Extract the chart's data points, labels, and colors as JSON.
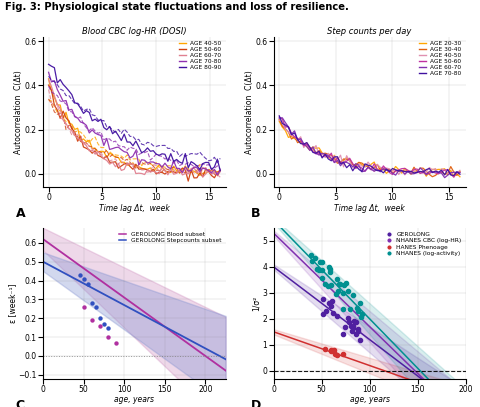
{
  "title": "Fig. 3: Physiological state fluctuations and loss of resilience.",
  "panel_A_title": "Blood CBC log-HR (DOSI)",
  "panel_B_title": "Step counts per day",
  "xlabel_AB": "Time lag Δt,  week",
  "ylabel_AB": "Autocorrelation  C(Δt)",
  "xlim_AB": [
    -0.5,
    16.5
  ],
  "ylim_AB": [
    -0.06,
    0.62
  ],
  "xticks_AB": [
    0,
    5,
    10,
    15
  ],
  "yticks_AB": [
    0.0,
    0.2,
    0.4,
    0.6
  ],
  "panel_A_ages": [
    "AGE 40-50",
    "AGE 50-60",
    "AGE 60-70",
    "AGE 70-80",
    "AGE 80-90"
  ],
  "panel_A_colors": [
    "#FFA500",
    "#D04010",
    "#E08090",
    "#9030B0",
    "#4010A0"
  ],
  "panel_B_ages": [
    "AGE 20-30",
    "AGE 30-40",
    "AGE 40-50",
    "AGE 50-60",
    "AGE 60-70",
    "AGE 70-80"
  ],
  "panel_B_colors": [
    "#FFA500",
    "#E06010",
    "#E090B0",
    "#C030A0",
    "#8030B0",
    "#4010A0"
  ],
  "panel_C_xlabel": "age, years",
  "panel_C_ylabel": "ε [week⁻¹]",
  "panel_C_xlim": [
    0,
    225
  ],
  "panel_C_ylim": [
    -0.12,
    0.68
  ],
  "panel_C_yticks": [
    -0.1,
    0.0,
    0.1,
    0.2,
    0.3,
    0.4,
    0.5,
    0.6
  ],
  "panel_C_xticks": [
    0,
    50,
    100,
    150,
    200
  ],
  "panel_D_xlabel": "age, years",
  "panel_D_ylabel": "1/σ²",
  "panel_D_xlim": [
    0,
    200
  ],
  "panel_D_ylim": [
    -0.3,
    5.5
  ],
  "panel_D_yticks": [
    0,
    1,
    2,
    3,
    4,
    5
  ],
  "panel_D_xticks": [
    0,
    50,
    100,
    150,
    200
  ],
  "blood_line_color": "#B030A0",
  "step_line_color": "#3050C0",
  "blood_fill_color": "#D090C0",
  "step_fill_color": "#8090D0",
  "gerolong_color": "#5020A0",
  "nhanes_cbc_color": "#8030B0",
  "nhanes_pheno_color": "#D03030",
  "nhanes_activity_color": "#009090"
}
